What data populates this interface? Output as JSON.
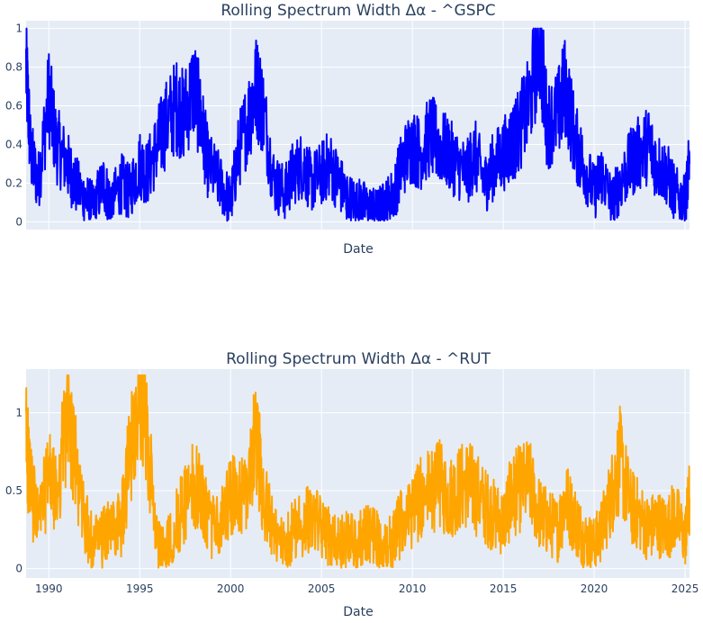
{
  "chart_data": [
    {
      "type": "line",
      "title": "Rolling Spectrum Width Δα - ^GSPC",
      "xlabel": "Date",
      "ylabel": "",
      "xlim": [
        "1988-10-01",
        "2025-03-31"
      ],
      "ylim": [
        -0.04,
        1.04
      ],
      "yticks": [
        0,
        0.2,
        0.4,
        0.6,
        0.8,
        1
      ],
      "ytick_labels": [
        "0",
        "0.2",
        "0.4",
        "0.6",
        "0.8",
        "1"
      ],
      "xticks": [],
      "xtick_labels": [],
      "grid": true,
      "series": [
        {
          "color": "#0000ff",
          "x": [
            "1988-10-01",
            "1989-01-01",
            "1989-06-01",
            "1990-01-01",
            "1990-06-01",
            "1991-01-01",
            "1991-06-01",
            "1992-01-01",
            "1992-06-01",
            "1993-01-01",
            "1993-06-01",
            "1994-01-01",
            "1994-06-01",
            "1995-01-01",
            "1995-06-01",
            "1996-01-01",
            "1996-06-01",
            "1997-01-01",
            "1997-06-01",
            "1998-01-01",
            "1998-06-01",
            "1998-10-01",
            "1999-06-01",
            "2000-01-01",
            "2000-06-01",
            "2001-01-01",
            "2001-06-01",
            "2001-10-01",
            "2002-06-01",
            "2003-01-01",
            "2003-06-01",
            "2004-01-01",
            "2004-06-01",
            "2005-01-01",
            "2005-06-01",
            "2006-01-01",
            "2006-06-01",
            "2007-01-01",
            "2007-06-01",
            "2008-01-01",
            "2008-06-01",
            "2009-01-01",
            "2009-06-01",
            "2010-01-01",
            "2010-06-01",
            "2011-01-01",
            "2011-06-01",
            "2012-01-01",
            "2012-06-01",
            "2013-01-01",
            "2013-06-01",
            "2014-01-01",
            "2014-06-01",
            "2015-01-01",
            "2015-06-01",
            "2015-10-01",
            "2016-06-01",
            "2017-01-01",
            "2017-06-01",
            "2018-01-01",
            "2018-06-01",
            "2019-01-01",
            "2019-06-01",
            "2020-01-01",
            "2020-06-01",
            "2021-01-01",
            "2021-06-01",
            "2022-01-01",
            "2022-06-01",
            "2023-01-01",
            "2023-06-01",
            "2024-01-01",
            "2024-06-01",
            "2025-01-01",
            "2025-03-31"
          ],
          "y": [
            0.8,
            0.35,
            0.2,
            0.65,
            0.4,
            0.3,
            0.2,
            0.12,
            0.08,
            0.2,
            0.1,
            0.2,
            0.15,
            0.3,
            0.25,
            0.4,
            0.5,
            0.6,
            0.55,
            0.7,
            0.5,
            0.3,
            0.2,
            0.1,
            0.35,
            0.55,
            0.7,
            0.6,
            0.2,
            0.15,
            0.25,
            0.3,
            0.2,
            0.25,
            0.3,
            0.2,
            0.12,
            0.1,
            0.08,
            0.05,
            0.08,
            0.15,
            0.3,
            0.4,
            0.35,
            0.45,
            0.4,
            0.35,
            0.3,
            0.25,
            0.35,
            0.2,
            0.28,
            0.35,
            0.4,
            0.45,
            0.6,
            0.95,
            0.5,
            0.55,
            0.7,
            0.4,
            0.3,
            0.15,
            0.25,
            0.1,
            0.2,
            0.3,
            0.35,
            0.4,
            0.3,
            0.25,
            0.15,
            0.1,
            0.3
          ]
        }
      ]
    },
    {
      "type": "line",
      "title": "Rolling Spectrum Width Δα - ^RUT",
      "xlabel": "Date",
      "ylabel": "",
      "xlim": [
        "1988-10-01",
        "2025-03-31"
      ],
      "ylim": [
        -0.06,
        1.28
      ],
      "yticks": [
        0,
        0.5,
        1
      ],
      "ytick_labels": [
        "0",
        "0.5",
        "1"
      ],
      "xticks": [
        "1990-01-01",
        "1995-01-01",
        "2000-01-01",
        "2005-01-01",
        "2010-01-01",
        "2015-01-01",
        "2020-01-01",
        "2025-01-01"
      ],
      "xtick_labels": [
        "1990",
        "1995",
        "2000",
        "2005",
        "2010",
        "2015",
        "2020",
        "2025"
      ],
      "grid": true,
      "series": [
        {
          "color": "#ffa500",
          "x": [
            "1988-10-01",
            "1989-01-01",
            "1989-06-01",
            "1990-01-01",
            "1990-06-01",
            "1991-01-01",
            "1991-06-01",
            "1992-01-01",
            "1992-06-01",
            "1993-01-01",
            "1993-06-01",
            "1994-01-01",
            "1994-06-01",
            "1995-01-01",
            "1995-06-01",
            "1996-01-01",
            "1996-06-01",
            "1997-01-01",
            "1997-06-01",
            "1998-01-01",
            "1998-06-01",
            "1998-10-01",
            "1999-06-01",
            "2000-01-01",
            "2000-06-01",
            "2001-01-01",
            "2001-06-01",
            "2001-10-01",
            "2002-06-01",
            "2003-01-01",
            "2003-06-01",
            "2004-01-01",
            "2004-06-01",
            "2005-01-01",
            "2005-06-01",
            "2006-01-01",
            "2006-06-01",
            "2007-01-01",
            "2007-06-01",
            "2008-01-01",
            "2008-06-01",
            "2009-01-01",
            "2009-06-01",
            "2010-01-01",
            "2010-06-01",
            "2011-01-01",
            "2011-06-01",
            "2012-01-01",
            "2012-06-01",
            "2013-01-01",
            "2013-06-01",
            "2014-01-01",
            "2014-06-01",
            "2015-01-01",
            "2015-06-01",
            "2015-10-01",
            "2016-06-01",
            "2017-01-01",
            "2017-06-01",
            "2018-01-01",
            "2018-06-01",
            "2019-01-01",
            "2019-06-01",
            "2020-01-01",
            "2020-06-01",
            "2021-01-01",
            "2021-06-01",
            "2022-01-01",
            "2022-06-01",
            "2023-01-01",
            "2023-06-01",
            "2024-01-01",
            "2024-06-01",
            "2025-01-01",
            "2025-03-31"
          ],
          "y": [
            0.85,
            0.5,
            0.3,
            0.6,
            0.45,
            1.0,
            0.7,
            0.3,
            0.15,
            0.2,
            0.25,
            0.3,
            0.7,
            1.2,
            0.8,
            0.15,
            0.1,
            0.3,
            0.4,
            0.55,
            0.45,
            0.3,
            0.25,
            0.5,
            0.4,
            0.6,
            0.85,
            0.5,
            0.2,
            0.15,
            0.25,
            0.3,
            0.35,
            0.25,
            0.2,
            0.15,
            0.2,
            0.15,
            0.25,
            0.2,
            0.1,
            0.2,
            0.3,
            0.35,
            0.45,
            0.5,
            0.55,
            0.45,
            0.5,
            0.55,
            0.5,
            0.4,
            0.35,
            0.3,
            0.45,
            0.5,
            0.55,
            0.35,
            0.3,
            0.25,
            0.45,
            0.3,
            0.2,
            0.15,
            0.25,
            0.5,
            0.7,
            0.4,
            0.35,
            0.25,
            0.3,
            0.25,
            0.35,
            0.2,
            0.45
          ]
        }
      ]
    }
  ]
}
